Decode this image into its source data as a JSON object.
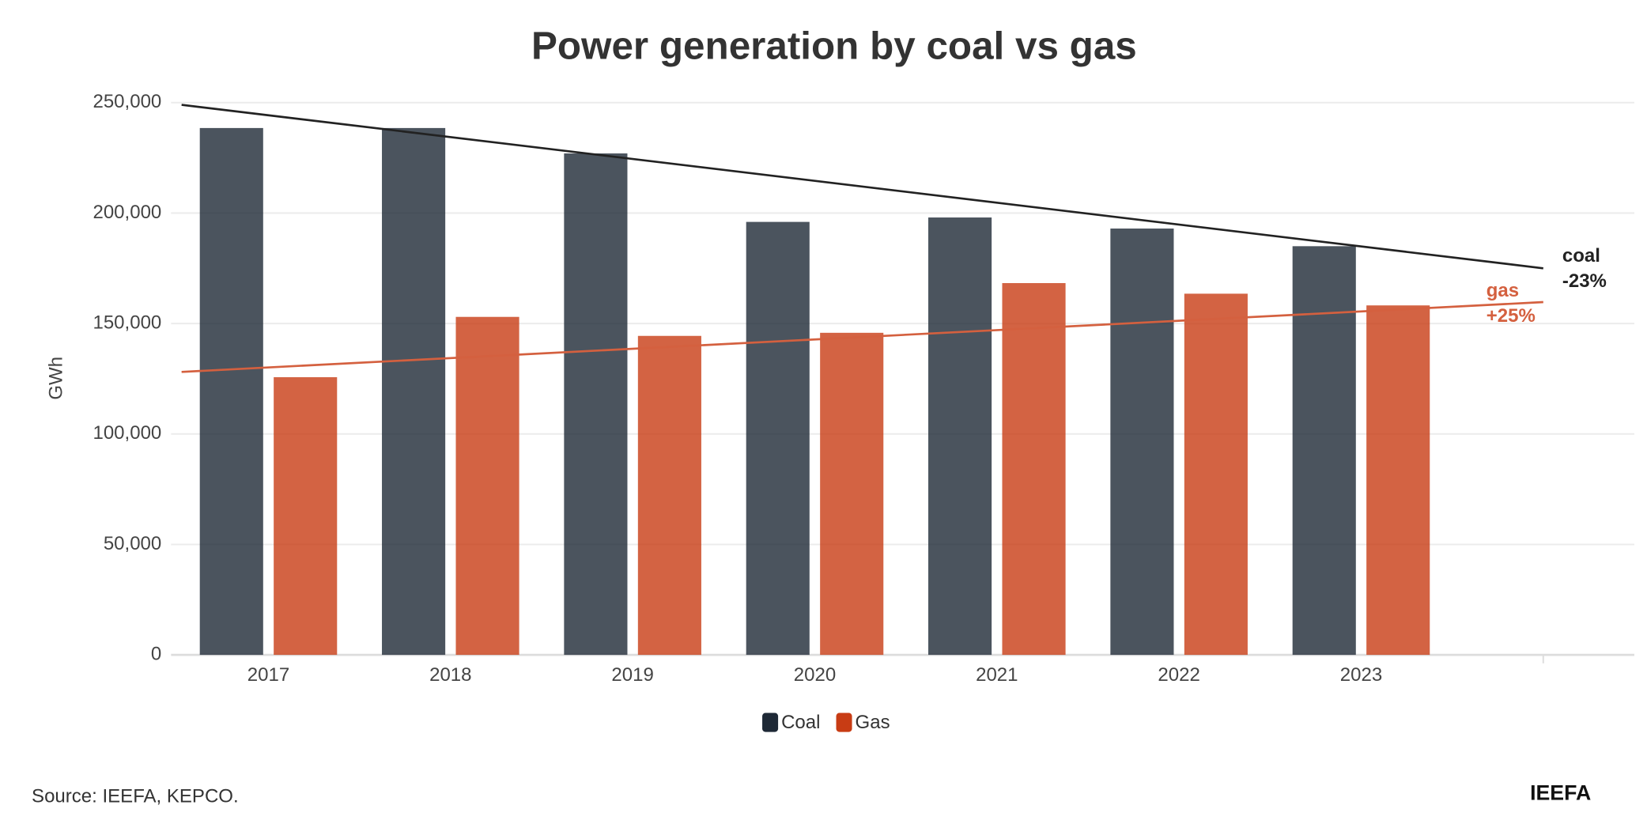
{
  "chart_data": {
    "type": "bar",
    "title": "Power generation by coal vs gas",
    "y_label": "GWh",
    "categories": [
      "2017",
      "2018",
      "2019",
      "2020",
      "2021",
      "2022",
      "2023",
      null
    ],
    "series": [
      {
        "name": "Coal",
        "color": "#1e2936",
        "values": [
          238500,
          238500,
          227000,
          196000,
          198000,
          193000,
          185000,
          null
        ]
      },
      {
        "name": "Gas",
        "color": "#c83c14",
        "values": [
          125700,
          153000,
          144400,
          145800,
          168300,
          163500,
          158200,
          null
        ]
      }
    ],
    "trendlines": [
      {
        "name": "coal",
        "label": "-23%",
        "color": "#222222",
        "values": [
          249000,
          175000
        ]
      },
      {
        "name": "gas",
        "label": "+25%",
        "color": "#d4603f",
        "values": [
          128100,
          159700
        ]
      }
    ],
    "ylim": [
      0,
      250000
    ],
    "yticks": [
      {
        "value": 0,
        "label": "0"
      },
      {
        "value": 50000,
        "label": "50,000"
      },
      {
        "value": 100000,
        "label": "100,000"
      },
      {
        "value": 150000,
        "label": "150,000"
      },
      {
        "value": 200000,
        "label": "200,000"
      },
      {
        "value": 250000,
        "label": "250,000"
      }
    ],
    "grid": true,
    "legend": "bottom",
    "source": "Source: IEEFA, KEPCO.",
    "brand": "IEEFA"
  }
}
